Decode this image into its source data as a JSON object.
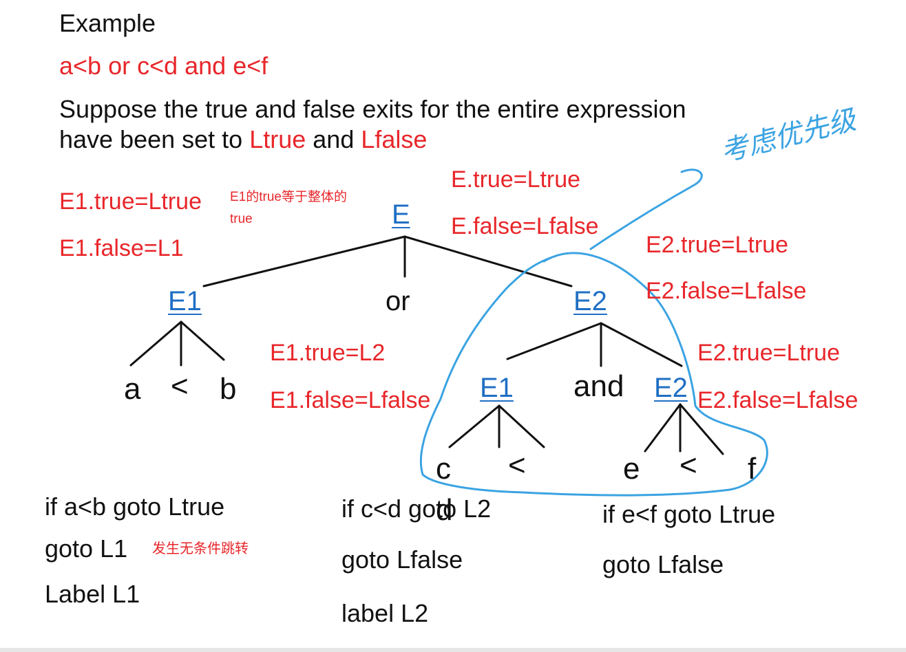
{
  "title": "Example",
  "expression": "a<b or c<d and e<f",
  "suppose": {
    "line1": "Suppose the true and false exits for the entire expression",
    "line2_prefix": "have been set to ",
    "ltrue": "Ltrue",
    "and": " and ",
    "lfalse": "Lfalse"
  },
  "annotations": {
    "e_true": "E.true=Ltrue",
    "e_false": "E.false=Lfalse",
    "e1_true_top": "E1.true=Ltrue",
    "e1_false_top": "E1.false=L1",
    "e1_note_line1": "E1的true等于整体的",
    "e1_note_line2": "true",
    "e2_true_top": "E2.true=Ltrue",
    "e2_false_top": "E2.false=Lfalse",
    "e1_true_mid": "E1.true=L2",
    "e1_false_mid": "E1.false=Lfalse",
    "e2_true_right": "E2.true=Ltrue",
    "e2_false_right": "E2.false=Lfalse",
    "handwritten": "考虑优先级"
  },
  "tree": {
    "root": "E",
    "e1": "E1",
    "or": "or",
    "e2": "E2",
    "a": "a",
    "lt1": "<",
    "b": "b",
    "sub_e1": "E1",
    "and": "and",
    "sub_e2": "E2",
    "c": "c",
    "lt2": "<",
    "d": "d",
    "e": "e",
    "lt3": "<",
    "f": "f"
  },
  "code": {
    "col1": [
      "if a<b goto Ltrue",
      "goto L1",
      "Label L1"
    ],
    "col1_note": "发生无条件跳转",
    "col2": [
      "if c<d goto L2",
      "goto Lfalse",
      "label L2"
    ],
    "col3": [
      "if e<f goto Ltrue",
      "goto Lfalse"
    ]
  },
  "colors": {
    "red": "#e8262a",
    "link_blue": "#1f6fc4",
    "pen_blue": "#3aa3e2",
    "black": "#111111"
  }
}
